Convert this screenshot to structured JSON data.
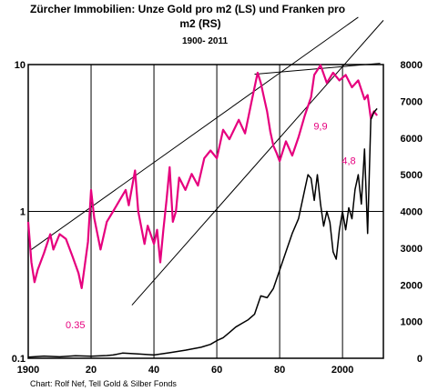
{
  "chart_data": {
    "type": "line",
    "title_line1": "Zürcher Immobilien:   Unze Gold pro m2 (LS) und Franken pro",
    "title_line2": "m2 (RS)",
    "subtitle": "1900- 2011",
    "credit": "Chart: Rolf Nef, Tell Gold & Silber Fonds",
    "xlim": [
      1900,
      2013
    ],
    "x_ticks": [
      "1900",
      "20",
      "40",
      "60",
      "80",
      "2000"
    ],
    "x_tick_values": [
      1900,
      1920,
      1940,
      1960,
      1980,
      2000
    ],
    "y_left": {
      "scale": "log",
      "range": [
        0.1,
        10
      ],
      "ticks": [
        "10",
        "1",
        "0.1"
      ],
      "tick_values": [
        10,
        1,
        0.1
      ]
    },
    "y_right": {
      "scale": "linear",
      "range": [
        0,
        8000
      ],
      "ticks": [
        "8000",
        "7000",
        "6000",
        "5000",
        "4000",
        "3000",
        "2000",
        "1000",
        "0"
      ],
      "tick_values": [
        8000,
        7000,
        6000,
        5000,
        4000,
        3000,
        2000,
        1000,
        0
      ]
    },
    "grid": "vertical-and-major",
    "series": [
      {
        "axis": "left",
        "color": "#e6007e",
        "x": [
          1900,
          1901,
          1902,
          1903,
          1905,
          1907,
          1908,
          1910,
          1912,
          1914,
          1916,
          1917,
          1919,
          1920,
          1921,
          1923,
          1925,
          1927,
          1931,
          1932,
          1934,
          1935,
          1937,
          1938,
          1940,
          1941,
          1942,
          1943,
          1944,
          1945,
          1946,
          1947,
          1948,
          1950,
          1952,
          1954,
          1956,
          1958,
          1960,
          1962,
          1964,
          1966,
          1967,
          1969,
          1971,
          1973,
          1974,
          1975,
          1976,
          1977,
          1978,
          1979,
          1980,
          1982,
          1984,
          1986,
          1988,
          1990,
          1991,
          1993,
          1995,
          1997,
          1999,
          2001,
          2003,
          2005,
          2007,
          2008,
          2009,
          2010,
          2011
        ],
        "values": [
          0.85,
          0.45,
          0.33,
          0.4,
          0.52,
          0.7,
          0.55,
          0.7,
          0.65,
          0.5,
          0.38,
          0.3,
          0.62,
          1.4,
          0.9,
          0.55,
          0.85,
          1.0,
          1.4,
          1.1,
          1.9,
          1.0,
          0.6,
          0.8,
          0.6,
          0.75,
          0.45,
          0.75,
          1.2,
          2.0,
          0.85,
          1.0,
          1.7,
          1.4,
          1.8,
          1.5,
          2.3,
          2.6,
          2.3,
          3.6,
          3.1,
          3.8,
          4.2,
          3.4,
          5.5,
          8.8,
          7.5,
          6.0,
          4.8,
          3.5,
          2.8,
          2.5,
          2.2,
          3.0,
          2.4,
          3.2,
          4.5,
          6.0,
          8.5,
          9.9,
          7.5,
          8.8,
          7.8,
          8.5,
          7.0,
          7.8,
          5.8,
          6.2,
          4.3,
          4.8,
          4.5
        ]
      },
      {
        "axis": "right",
        "color": "#000000",
        "x": [
          1900,
          1905,
          1910,
          1915,
          1920,
          1925,
          1927,
          1930,
          1935,
          1940,
          1945,
          1950,
          1955,
          1958,
          1960,
          1962,
          1964,
          1966,
          1968,
          1970,
          1972,
          1974,
          1976,
          1978,
          1980,
          1982,
          1984,
          1986,
          1988,
          1989,
          1990,
          1991,
          1992,
          1993,
          1994,
          1995,
          1996,
          1997,
          1998,
          1999,
          2000,
          2001,
          2002,
          2003,
          2004,
          2005,
          2006,
          2007,
          2008,
          2009,
          2010,
          2011
        ],
        "values": [
          30,
          60,
          40,
          70,
          55,
          75,
          90,
          140,
          120,
          90,
          150,
          220,
          300,
          380,
          480,
          560,
          700,
          850,
          950,
          1050,
          1200,
          1700,
          1650,
          1900,
          2400,
          2900,
          3400,
          3800,
          4600,
          5000,
          4900,
          4300,
          5000,
          4200,
          3600,
          4000,
          3700,
          2900,
          2700,
          3500,
          4000,
          3500,
          4100,
          3800,
          4600,
          5000,
          4200,
          5700,
          3400,
          6500,
          6700,
          6800
        ]
      }
    ],
    "trend_lines": [
      {
        "axis": "left",
        "points": [
          [
            1901,
            0.55
          ],
          [
            2005,
            21
          ]
        ]
      },
      {
        "axis": "left",
        "points": [
          [
            1933,
            0.23
          ],
          [
            2013,
            20
          ]
        ]
      },
      {
        "axis": "left",
        "points": [
          [
            1972,
            8.6
          ],
          [
            2012,
            10.2
          ]
        ]
      }
    ],
    "annotations": [
      {
        "text": "0.35",
        "x": 1915,
        "y": 0.16,
        "axis": "left"
      },
      {
        "text": "9,9",
        "x": 1993,
        "y": 3.6,
        "axis": "left"
      },
      {
        "text": "4,8",
        "x": 2002,
        "y": 2.1,
        "axis": "left"
      }
    ]
  }
}
